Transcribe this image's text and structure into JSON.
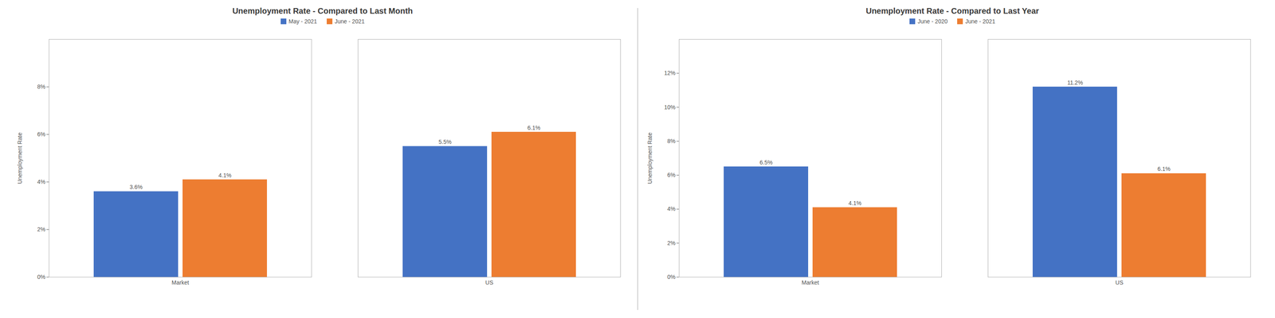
{
  "chart_data": [
    {
      "type": "bar",
      "title": "Unemployment Rate - Compared to Last Month",
      "categories": [
        "Market",
        "US"
      ],
      "series": [
        {
          "name": "May - 2021",
          "color": "#4472C4",
          "values": [
            3.6,
            5.5
          ],
          "value_labels": [
            "3.6%",
            "5.5%"
          ]
        },
        {
          "name": "June - 2021",
          "color": "#ED7D31",
          "values": [
            4.1,
            6.1
          ],
          "value_labels": [
            "4.1%",
            "6.1%"
          ]
        }
      ],
      "ylabel": "Unemployment Rate",
      "ylim": [
        0,
        10
      ],
      "yticks": [
        {
          "value": 0,
          "label": "0%"
        },
        {
          "value": 2,
          "label": "2%"
        },
        {
          "value": 4,
          "label": "4%"
        },
        {
          "value": 6,
          "label": "6%"
        },
        {
          "value": 8,
          "label": "8%"
        }
      ],
      "grid": false,
      "legend": "top",
      "data_labels": true
    },
    {
      "type": "bar",
      "title": "Unemployment Rate - Compared to Last Year",
      "categories": [
        "Market",
        "US"
      ],
      "series": [
        {
          "name": "June - 2020",
          "color": "#4472C4",
          "values": [
            6.5,
            11.2
          ],
          "value_labels": [
            "6.5%",
            "11.2%"
          ]
        },
        {
          "name": "June - 2021",
          "color": "#ED7D31",
          "values": [
            4.1,
            6.1
          ],
          "value_labels": [
            "4.1%",
            "6.1%"
          ]
        }
      ],
      "ylabel": "Unemployment Rate",
      "ylim": [
        0,
        14
      ],
      "yticks": [
        {
          "value": 0,
          "label": "0%"
        },
        {
          "value": 2,
          "label": "2%"
        },
        {
          "value": 4,
          "label": "4%"
        },
        {
          "value": 6,
          "label": "6%"
        },
        {
          "value": 8,
          "label": "8%"
        },
        {
          "value": 10,
          "label": "10%"
        },
        {
          "value": 12,
          "label": "12%"
        }
      ],
      "grid": false,
      "legend": "top",
      "data_labels": true
    }
  ]
}
